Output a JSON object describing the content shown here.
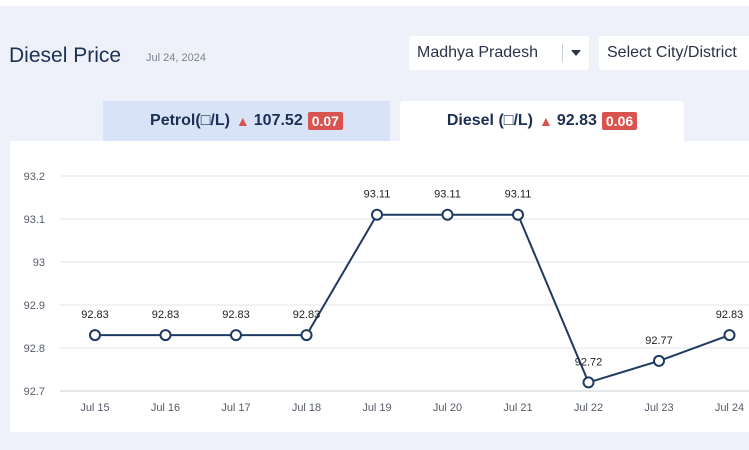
{
  "header": {
    "title": "Diesel Price",
    "date": "Jul 24, 2024",
    "state_select": "Madhya Pradesh",
    "city_select": "Select City/District"
  },
  "tabs": [
    {
      "name": "Petrol(□/L)",
      "value": "107.52",
      "change": "0.07",
      "active": false
    },
    {
      "name": "Diesel (□/L)",
      "value": "92.83",
      "change": "0.06",
      "active": true
    }
  ],
  "colors": {
    "line": "#1e3a60",
    "badge": "#d9534f",
    "active_tab": "#ffffff",
    "inactive_tab": "#d9e3f7"
  },
  "chart_data": {
    "type": "line",
    "categories": [
      "Jul 15",
      "Jul 16",
      "Jul 17",
      "Jul 18",
      "Jul 19",
      "Jul 20",
      "Jul 21",
      "Jul 22",
      "Jul 23",
      "Jul 24"
    ],
    "series": [
      {
        "values": [
          92.83,
          92.83,
          92.83,
          92.83,
          93.11,
          93.11,
          93.11,
          92.72,
          92.77,
          92.83
        ]
      }
    ],
    "data_labels": [
      "92.83",
      "92.83",
      "92.83",
      "92.83",
      "93.11",
      "93.11",
      "93.11",
      "92.72",
      "92.77",
      "92.83"
    ],
    "ylim": [
      92.7,
      93.2
    ],
    "yticks": [
      "93.2",
      "93.1",
      "93",
      "92.9",
      "92.8",
      "92.7"
    ],
    "ytick_values": [
      93.2,
      93.1,
      93.0,
      92.9,
      92.8,
      92.7
    ],
    "grid": true,
    "title": "",
    "xlabel": "",
    "ylabel": ""
  }
}
